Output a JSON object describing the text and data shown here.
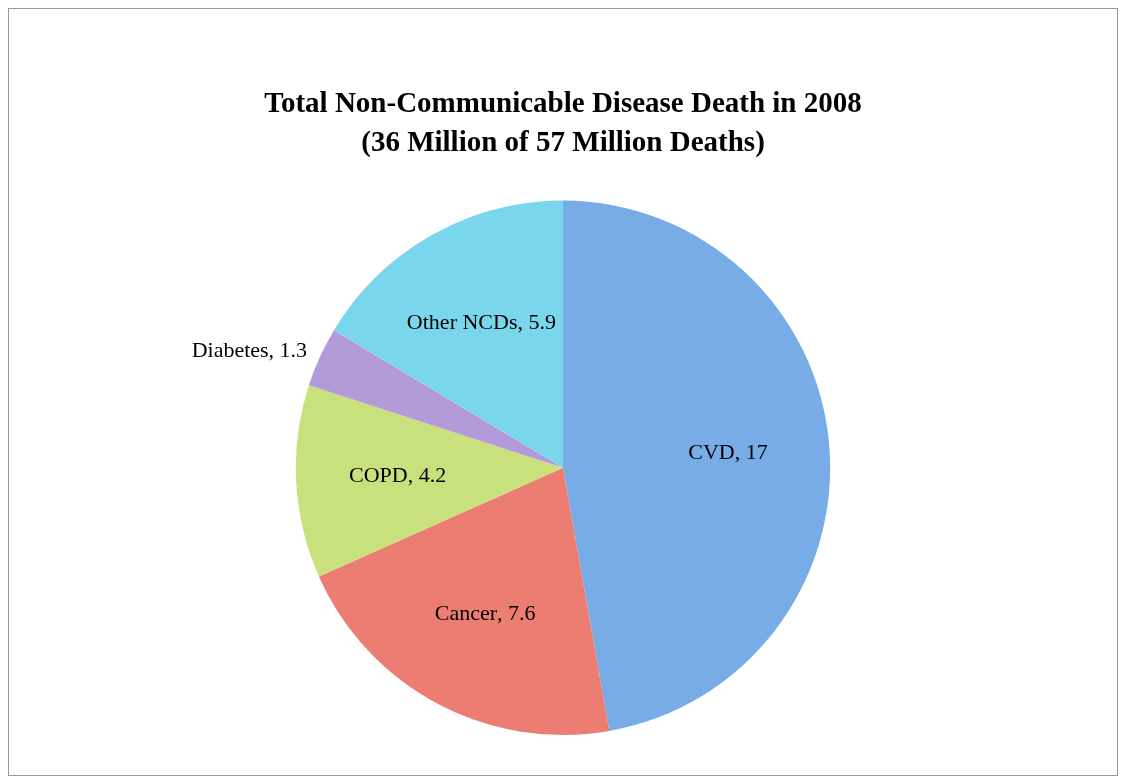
{
  "chart_data": {
    "type": "pie",
    "title": "Total Non-Communicable Disease Death in 2008",
    "subtitle": "(36 Million of 57 Million Deaths)",
    "categories": [
      "CVD",
      "Cancer",
      "COPD",
      "Diabetes",
      "Other NCDs"
    ],
    "values": [
      17,
      7.6,
      4.2,
      1.3,
      5.9
    ],
    "colors": [
      "#78ace6",
      "#ec7d72",
      "#c9e17c",
      "#b39bd9",
      "#79d6ec"
    ],
    "value_labels": [
      ", 17",
      ", 7.6",
      ", 4.2",
      ", 1.3",
      ", 5.9"
    ],
    "legend": false
  }
}
